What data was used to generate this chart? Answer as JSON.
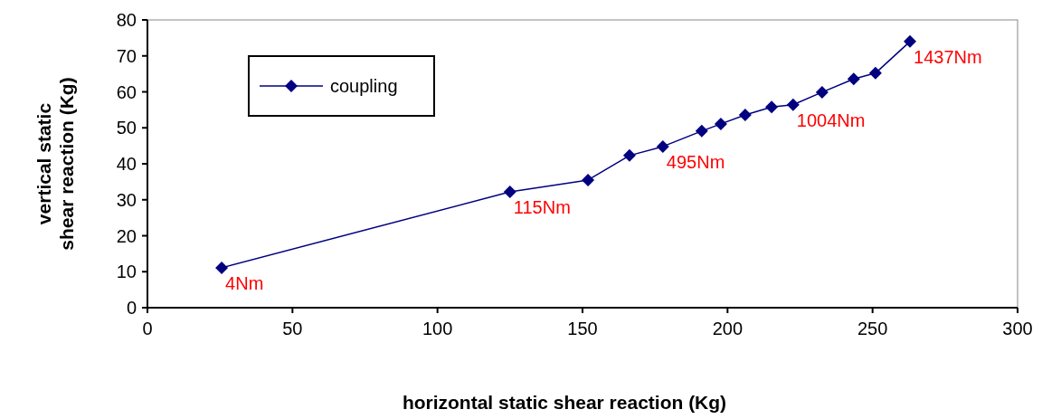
{
  "chart_data": {
    "type": "line",
    "xlabel": "horizontal static shear reaction (Kg)",
    "ylabel": "vertical static shear reaction (Kg)",
    "series": [
      {
        "name": "coupling",
        "color": "#000080",
        "x": [
          25.6,
          125,
          151.9,
          166.2,
          177.7,
          191.1,
          197.7,
          206.1,
          215.2,
          222.6,
          232.6,
          243.5,
          251.0,
          262.9
        ],
        "values": [
          11.1,
          32.2,
          35.5,
          42.3,
          44.8,
          49.1,
          51.1,
          53.6,
          55.8,
          56.4,
          59.9,
          63.6,
          65.2,
          74.0
        ]
      }
    ],
    "annotations": [
      {
        "text": "4Nm",
        "x": 25.6,
        "y": 11.1
      },
      {
        "text": "115Nm",
        "x": 125,
        "y": 32.2
      },
      {
        "text": "495Nm",
        "x": 177.7,
        "y": 44.8
      },
      {
        "text": "1004Nm",
        "x": 222.6,
        "y": 56.4
      },
      {
        "text": "1437Nm",
        "x": 262.9,
        "y": 74.0
      }
    ],
    "xlim": [
      0,
      300
    ],
    "xticks": [
      0,
      50,
      100,
      150,
      200,
      250,
      300
    ],
    "ylim": [
      0,
      80
    ],
    "yticks": [
      0,
      10,
      20,
      30,
      40,
      50,
      60,
      70,
      80
    ],
    "legend": "top left",
    "marker": "diamond",
    "line_style": "solid",
    "grid": false
  }
}
